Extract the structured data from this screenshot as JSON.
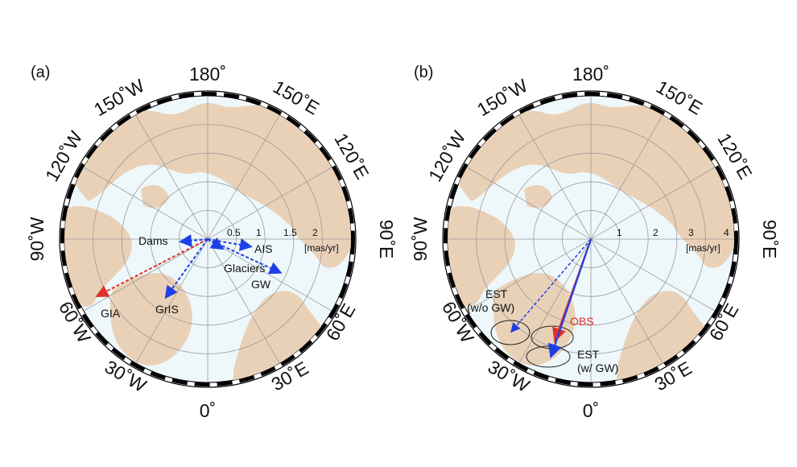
{
  "panels": [
    {
      "id": "a",
      "label": "(a)",
      "ring_labels": [
        "0.5",
        "1",
        "1.5",
        "2"
      ],
      "unit": "[mas/yr]",
      "vector_labels": {
        "dams": "Dams",
        "ais": "AIS",
        "glaciers": "Glaciers",
        "gw": "GW",
        "gia": "GIA",
        "gris": "GrIS"
      }
    },
    {
      "id": "b",
      "label": "(b)",
      "ring_labels": [
        "1",
        "2",
        "3",
        "4"
      ],
      "unit": "[mas/yr]",
      "vector_labels": {
        "est_wo_gw_1": "EST",
        "est_wo_gw_2": "(w/o GW)",
        "obs": "OBS",
        "est_w_gw_1": "EST",
        "est_w_gw_2": "(w/ GW)"
      }
    }
  ],
  "longitude_labels": {
    "top": "180˚",
    "bottom": "0˚",
    "left": "90˚W",
    "right": "90˚E",
    "w150": "150˚W",
    "w120": "120˚W",
    "w60": "60˚W",
    "w30": "30˚W",
    "e150": "150˚E",
    "e120": "120˚E",
    "e60": "60˚E",
    "e30": "30˚E"
  },
  "colors": {
    "ocean": "#eef8fb",
    "land": "#e9d1b8",
    "grid": "#9a9a9a",
    "vector_blue": "#1f3fe6",
    "vector_red": "#e0302a",
    "obs_text": "#e0302a",
    "frame": "#000000"
  }
}
